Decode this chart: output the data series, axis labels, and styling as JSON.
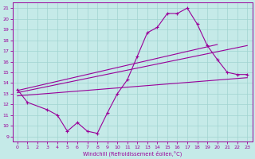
{
  "xlabel": "Windchill (Refroidissement éolien,°C)",
  "bg_color": "#c5eae8",
  "line_color": "#990099",
  "grid_color": "#a0d4d0",
  "xlim": [
    -0.5,
    23.5
  ],
  "ylim": [
    8.5,
    21.5
  ],
  "yticks": [
    9,
    10,
    11,
    12,
    13,
    14,
    15,
    16,
    17,
    18,
    19,
    20,
    21
  ],
  "xticks": [
    0,
    1,
    2,
    3,
    4,
    5,
    6,
    7,
    8,
    9,
    10,
    11,
    12,
    13,
    14,
    15,
    16,
    17,
    18,
    19,
    20,
    21,
    22,
    23
  ],
  "main_x": [
    0,
    1,
    3,
    4,
    5,
    6,
    7,
    8,
    9,
    10,
    11,
    12,
    13,
    14,
    15,
    16,
    17,
    18,
    19,
    20,
    21,
    22,
    23
  ],
  "main_y": [
    13.4,
    12.2,
    11.5,
    11.0,
    9.5,
    10.3,
    9.5,
    9.3,
    11.2,
    13.0,
    14.3,
    16.5,
    18.7,
    19.2,
    20.5,
    20.5,
    21.0,
    19.5,
    17.5,
    16.2,
    15.0,
    14.8,
    14.8
  ],
  "trend1_x": [
    0,
    23
  ],
  "trend1_y": [
    12.8,
    14.5
  ],
  "trend2_x": [
    0,
    23
  ],
  "trend2_y": [
    13.1,
    17.5
  ],
  "trend3_x": [
    0,
    20
  ],
  "trend3_y": [
    13.3,
    17.6
  ]
}
